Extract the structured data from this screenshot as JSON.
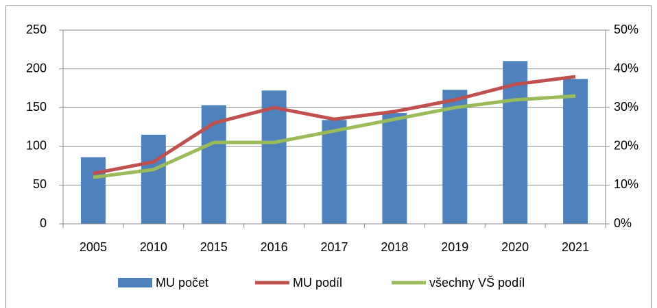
{
  "chart_data": {
    "type": "bar-line",
    "categories": [
      "2005",
      "2010",
      "2015",
      "2016",
      "2017",
      "2018",
      "2019",
      "2020",
      "2021"
    ],
    "series": [
      {
        "name": "MU počet",
        "type": "bar",
        "color": "#4f81bd",
        "values": [
          86,
          115,
          153,
          172,
          134,
          143,
          173,
          210,
          187
        ]
      },
      {
        "name": "MU podíl",
        "type": "line",
        "axis": "y2",
        "color": "#c0504d",
        "values": [
          13,
          16,
          26,
          30,
          27,
          29,
          32,
          36,
          38
        ]
      },
      {
        "name": "všechny VŠ podíl",
        "type": "line",
        "axis": "y2",
        "color": "#9bbb59",
        "values": [
          12,
          14,
          21,
          21,
          24,
          27,
          30,
          32,
          33
        ]
      }
    ],
    "ylim": [
      0,
      250
    ],
    "yticks": [
      0,
      50,
      100,
      150,
      200,
      250
    ],
    "y2lim": [
      0,
      50
    ],
    "y2ticks": [
      {
        "value": 0,
        "label": "0%"
      },
      {
        "value": 10,
        "label": "10%"
      },
      {
        "value": 20,
        "label": "20%"
      },
      {
        "value": 30,
        "label": "30%"
      },
      {
        "value": 40,
        "label": "40%"
      },
      {
        "value": 50,
        "label": "50%"
      }
    ],
    "grid": true,
    "legend": "bottom"
  }
}
